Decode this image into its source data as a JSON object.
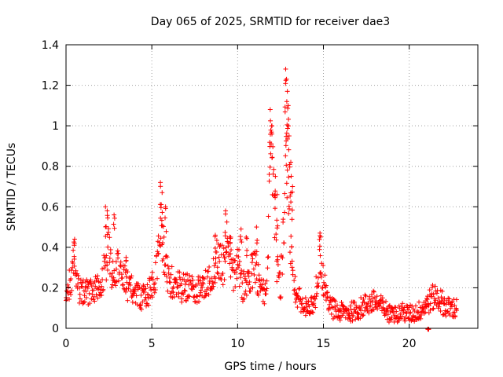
{
  "colors": {
    "series": "#ff0000",
    "grid": "#a0a0a0",
    "frame": "#000000"
  },
  "chart_data": {
    "type": "scatter",
    "title": "Day 065 of 2025, SRMTID for receiver dae3",
    "xlabel": "GPS time / hours",
    "ylabel": "SRMTID / TECUs",
    "xlim": [
      0,
      24
    ],
    "ylim": [
      0,
      1.4
    ],
    "x_ticks": [
      0,
      5,
      10,
      15,
      20
    ],
    "x_tick_labels": [
      "0",
      "5",
      "10",
      "15",
      "20"
    ],
    "y_ticks": [
      0,
      0.2,
      0.4,
      0.6,
      0.8,
      1.0,
      1.2,
      1.4
    ],
    "y_tick_labels": [
      "0",
      "0.2",
      "0.4",
      "0.6",
      "0.8",
      "1",
      "1.2",
      "1.4"
    ],
    "grid": true,
    "marker": "plus",
    "series": [
      {
        "name": "SRMTID",
        "profile": [
          [
            0.0,
            0.15
          ],
          [
            0.3,
            0.25
          ],
          [
            0.5,
            0.36
          ],
          [
            0.7,
            0.2
          ],
          [
            1.0,
            0.17
          ],
          [
            1.5,
            0.2
          ],
          [
            2.0,
            0.21
          ],
          [
            2.3,
            0.3
          ],
          [
            2.5,
            0.42
          ],
          [
            2.7,
            0.25
          ],
          [
            3.0,
            0.3
          ],
          [
            3.5,
            0.22
          ],
          [
            4.0,
            0.17
          ],
          [
            4.5,
            0.15
          ],
          [
            5.0,
            0.19
          ],
          [
            5.3,
            0.28
          ],
          [
            5.5,
            0.55
          ],
          [
            5.7,
            0.4
          ],
          [
            6.0,
            0.24
          ],
          [
            6.5,
            0.21
          ],
          [
            7.0,
            0.2
          ],
          [
            7.5,
            0.19
          ],
          [
            8.0,
            0.2
          ],
          [
            8.5,
            0.25
          ],
          [
            8.8,
            0.35
          ],
          [
            9.2,
            0.3
          ],
          [
            9.4,
            0.48
          ],
          [
            9.7,
            0.25
          ],
          [
            10.0,
            0.35
          ],
          [
            10.3,
            0.2
          ],
          [
            10.6,
            0.25
          ],
          [
            11.0,
            0.3
          ],
          [
            11.4,
            0.18
          ],
          [
            11.7,
            0.2
          ],
          [
            11.9,
            0.85
          ],
          [
            12.1,
            0.72
          ],
          [
            12.3,
            0.3
          ],
          [
            12.5,
            0.18
          ],
          [
            12.7,
            0.55
          ],
          [
            12.8,
            1.0
          ],
          [
            13.0,
            0.6
          ],
          [
            13.2,
            0.25
          ],
          [
            13.5,
            0.15
          ],
          [
            14.0,
            0.1
          ],
          [
            14.5,
            0.12
          ],
          [
            14.8,
            0.38
          ],
          [
            15.0,
            0.22
          ],
          [
            15.3,
            0.12
          ],
          [
            15.8,
            0.08
          ],
          [
            16.5,
            0.08
          ],
          [
            17.0,
            0.09
          ],
          [
            17.5,
            0.12
          ],
          [
            18.0,
            0.13
          ],
          [
            18.5,
            0.1
          ],
          [
            19.0,
            0.06
          ],
          [
            19.5,
            0.08
          ],
          [
            20.0,
            0.07
          ],
          [
            20.5,
            0.08
          ],
          [
            21.0,
            0.12
          ],
          [
            21.5,
            0.16
          ],
          [
            21.8,
            0.14
          ],
          [
            22.2,
            0.1
          ],
          [
            22.8,
            0.1
          ]
        ],
        "spikes": [
          [
            0.5,
            0.44
          ],
          [
            2.3,
            0.6
          ],
          [
            2.4,
            0.58
          ],
          [
            2.8,
            0.56
          ],
          [
            3.5,
            0.35
          ],
          [
            5.5,
            0.72
          ],
          [
            5.6,
            0.67
          ],
          [
            5.8,
            0.6
          ],
          [
            8.7,
            0.46
          ],
          [
            9.3,
            0.58
          ],
          [
            9.6,
            0.45
          ],
          [
            10.2,
            0.49
          ],
          [
            10.5,
            0.45
          ],
          [
            11.1,
            0.5
          ],
          [
            11.9,
            1.08
          ],
          [
            12.0,
            1.0
          ],
          [
            12.2,
            0.75
          ],
          [
            12.3,
            0.66
          ],
          [
            12.8,
            1.28
          ],
          [
            12.85,
            1.23
          ],
          [
            12.9,
            1.17
          ],
          [
            12.95,
            1.1
          ],
          [
            13.0,
            0.95
          ],
          [
            13.1,
            0.82
          ],
          [
            13.2,
            0.7
          ],
          [
            14.8,
            0.47
          ],
          [
            21.1,
            -0.005
          ]
        ]
      }
    ]
  }
}
